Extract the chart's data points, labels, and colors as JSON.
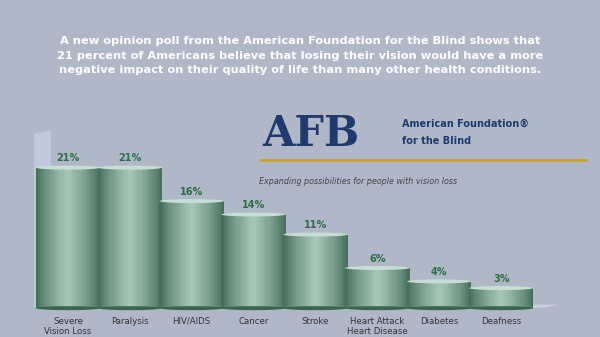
{
  "categories": [
    "Severe\nVision Loss",
    "Paralysis",
    "HIV/AIDS",
    "Cancer",
    "Stroke",
    "Heart Attack\nHeart Disease",
    "Diabetes",
    "Deafness"
  ],
  "values": [
    21,
    21,
    16,
    14,
    11,
    6,
    4,
    3
  ],
  "bar_front_color": "#5a8f78",
  "bar_light_color": "#a8c8b8",
  "bar_dark_color": "#3a6650",
  "bar_top_color": "#c8ddd5",
  "header_bg": "#1e3a6e",
  "header_text": "A new opinion poll from the American Foundation for the Blind shows that\n21 percent of Americans believe that losing their vision would have a more\nnegative impact on their quality of life than many other health conditions.",
  "header_text_color": "#ffffff",
  "chart_bg": "#f0f2f8",
  "floor_color": "#c8cee0",
  "wall_color": "#c0c8dc",
  "border_color": "#b0b8c8",
  "afb_blue": "#1e3a6e",
  "afb_yellow": "#c8a020",
  "afb_sub": "Expanding possibilities for people with vision loss",
  "tick_label_color": "#333333",
  "value_label_color": "#2d6e48"
}
